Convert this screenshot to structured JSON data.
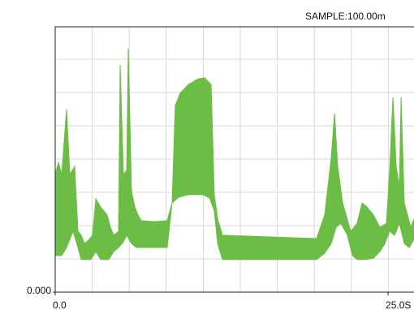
{
  "chart_data": {
    "type": "band",
    "title": "SAMPLE:100.00m",
    "color": "#6cbd45",
    "xlim": [
      0,
      26.95
    ],
    "ylim": [
      0,
      8
    ],
    "xticks": [
      {
        "value": 0,
        "label": "0.0"
      },
      {
        "value": 25,
        "label": "25.0S"
      }
    ],
    "yticks": [
      {
        "value": 0,
        "label": "0.000"
      }
    ],
    "grid": true,
    "upper": {
      "x": [
        0.0,
        0.24,
        0.49,
        0.85,
        1.1,
        1.46,
        1.71,
        1.95,
        2.2,
        2.56,
        2.8,
        3.05,
        3.41,
        3.9,
        4.15,
        4.39,
        4.76,
        4.88,
        5.12,
        5.37,
        5.49,
        5.73,
        5.98,
        6.22,
        6.46,
        7.44,
        8.41,
        8.78,
        9.02,
        9.39,
        10.0,
        10.73,
        11.22,
        11.71,
        11.95,
        12.2,
        12.56,
        19.63,
        20.24,
        20.73,
        20.98,
        21.22,
        21.59,
        22.2,
        22.68,
        23.05,
        23.41,
        23.9,
        24.39,
        24.88,
        25.12,
        25.37,
        25.61,
        25.85,
        25.98,
        26.22,
        26.71,
        26.95
      ],
      "values": [
        3.54,
        3.9,
        3.54,
        5.49,
        3.54,
        3.78,
        1.83,
        1.71,
        1.46,
        1.59,
        1.71,
        2.8,
        2.56,
        2.32,
        1.95,
        1.71,
        1.83,
        6.83,
        3.54,
        3.66,
        7.32,
        3.05,
        2.56,
        2.32,
        2.15,
        2.12,
        2.15,
        2.68,
        5.61,
        5.98,
        6.24,
        6.41,
        6.44,
        6.24,
        2.93,
        2.2,
        1.71,
        1.61,
        2.32,
        4.02,
        5.37,
        3.78,
        2.68,
        1.83,
        2.07,
        2.68,
        2.56,
        2.32,
        1.95,
        2.07,
        3.66,
        5.85,
        3.78,
        3.17,
        5.85,
        2.68,
        1.95,
        2.2
      ]
    },
    "lower": {
      "x": [
        0.0,
        0.49,
        0.85,
        1.34,
        1.71,
        1.95,
        2.68,
        3.05,
        3.41,
        4.02,
        4.39,
        4.76,
        5.12,
        5.37,
        5.73,
        6.1,
        6.46,
        7.44,
        8.41,
        8.78,
        9.27,
        10.0,
        11.1,
        11.59,
        11.95,
        12.2,
        12.56,
        19.63,
        20.24,
        20.73,
        21.1,
        21.46,
        21.95,
        22.32,
        22.68,
        23.41,
        23.9,
        24.39,
        24.76,
        25.12,
        25.49,
        25.85,
        26.22,
        26.59,
        26.95
      ],
      "values": [
        1.1,
        1.1,
        1.34,
        1.83,
        1.34,
        0.98,
        0.98,
        1.22,
        0.98,
        0.98,
        1.22,
        1.34,
        1.51,
        1.71,
        1.46,
        1.34,
        1.34,
        1.34,
        1.34,
        2.68,
        2.85,
        2.93,
        2.93,
        2.83,
        2.44,
        1.46,
        0.98,
        0.98,
        1.17,
        1.46,
        1.95,
        2.07,
        1.71,
        1.1,
        0.98,
        0.98,
        1.02,
        1.22,
        1.46,
        1.83,
        1.71,
        2.07,
        1.46,
        1.34,
        1.59
      ]
    }
  }
}
